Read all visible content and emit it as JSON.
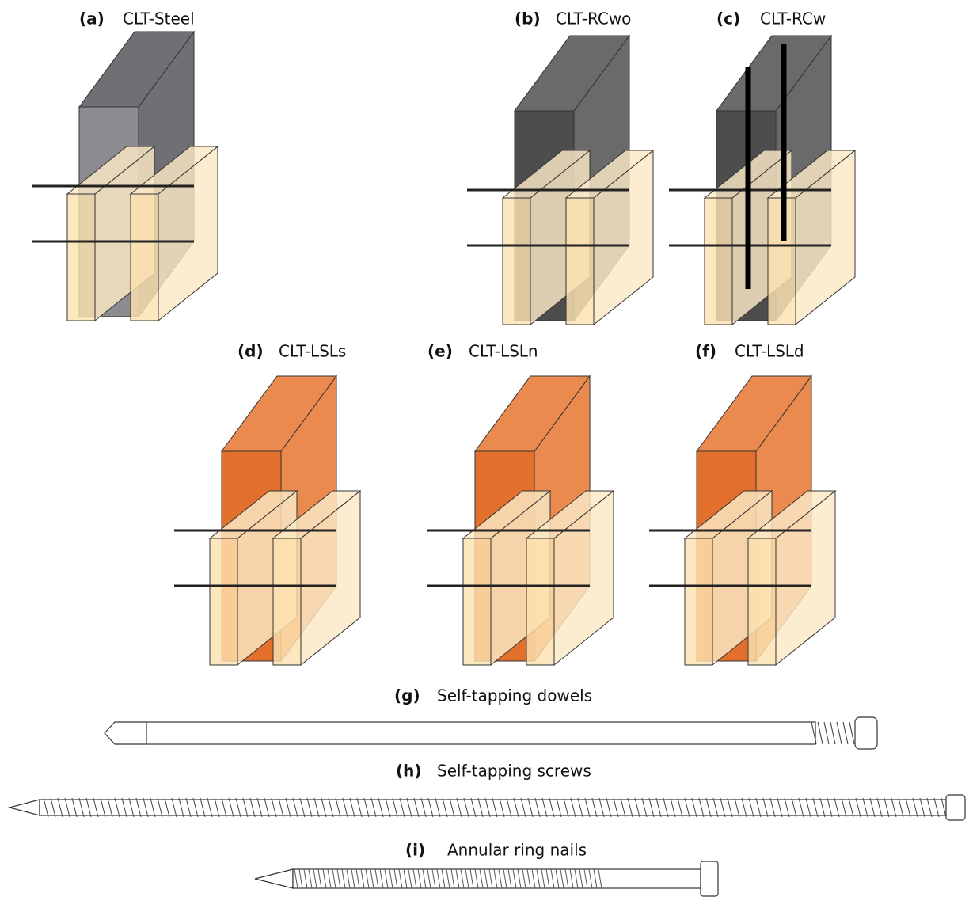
{
  "panels": [
    {
      "label": "(a)",
      "name": "CLT-Steel"
    },
    {
      "label": "(b)",
      "name": "CLT-RCwo"
    },
    {
      "label": "(c)",
      "name": "CLT-RCw"
    },
    {
      "label": "(d)",
      "name": "CLT-LSLs"
    },
    {
      "label": "(e)",
      "name": "CLT-LSLn"
    },
    {
      "label": "(f)",
      "name": "CLT-LSLd"
    }
  ],
  "fasteners": [
    {
      "label": "(g)",
      "name": "Self-tapping dowels"
    },
    {
      "label": "(h)",
      "name": "Self-tapping screws"
    },
    {
      "label": "(i)",
      "name": "Annular ring nails"
    }
  ]
}
